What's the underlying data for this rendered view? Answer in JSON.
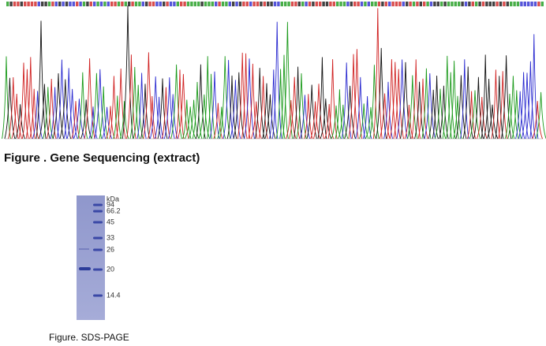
{
  "figures": [
    {
      "caption": "Figure . Gene Sequencing (extract)"
    },
    {
      "caption": "Figure. SDS-PAGE",
      "unit": "kDa",
      "markers": [
        "94",
        "66.2",
        "45",
        "33",
        "26",
        "20",
        "14.4"
      ]
    }
  ]
}
